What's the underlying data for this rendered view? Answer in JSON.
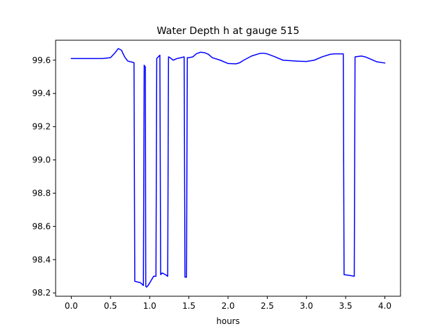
{
  "chart_data": {
    "type": "line",
    "title": "Water Depth h at gauge 515",
    "xlabel": "hours",
    "ylabel": "",
    "xlim": [
      -0.2,
      4.2
    ],
    "ylim": [
      98.18,
      99.72
    ],
    "xticks": [
      0.0,
      0.5,
      1.0,
      1.5,
      2.0,
      2.5,
      3.0,
      3.5,
      4.0
    ],
    "xtick_labels": [
      "0.0",
      "0.5",
      "1.0",
      "1.5",
      "2.0",
      "2.5",
      "3.0",
      "3.5",
      "4.0"
    ],
    "yticks": [
      98.2,
      98.4,
      98.6,
      98.8,
      99.0,
      99.2,
      99.4,
      99.6
    ],
    "ytick_labels": [
      "98.2",
      "98.4",
      "98.6",
      "98.8",
      "99.0",
      "99.2",
      "99.4",
      "99.6"
    ],
    "grid": false,
    "series": [
      {
        "color": "#0000ff",
        "x": [
          0.0,
          0.1,
          0.2,
          0.3,
          0.4,
          0.5,
          0.55,
          0.6,
          0.64,
          0.68,
          0.72,
          0.76,
          0.8,
          0.81,
          0.85,
          0.88,
          0.92,
          0.93,
          0.935,
          0.945,
          0.95,
          0.96,
          0.98,
          1.0,
          1.05,
          1.08,
          1.09,
          1.12,
          1.13,
          1.14,
          1.16,
          1.2,
          1.23,
          1.24,
          1.26,
          1.3,
          1.35,
          1.4,
          1.44,
          1.45,
          1.47,
          1.48,
          1.5,
          1.55,
          1.6,
          1.65,
          1.7,
          1.75,
          1.8,
          1.9,
          2.0,
          2.1,
          2.15,
          2.2,
          2.3,
          2.4,
          2.45,
          2.5,
          2.6,
          2.7,
          2.8,
          2.9,
          3.0,
          3.1,
          3.2,
          3.3,
          3.35,
          3.4,
          3.47,
          3.48,
          3.55,
          3.61,
          3.62,
          3.7,
          3.75,
          3.8,
          3.9,
          4.0
        ],
        "y": [
          99.61,
          99.61,
          99.61,
          99.61,
          99.61,
          99.615,
          99.64,
          99.67,
          99.66,
          99.62,
          99.595,
          99.59,
          99.585,
          98.27,
          98.265,
          98.262,
          98.245,
          99.57,
          99.565,
          99.56,
          98.24,
          98.235,
          98.245,
          98.26,
          98.3,
          98.3,
          99.61,
          99.625,
          99.63,
          98.31,
          98.32,
          98.31,
          98.3,
          99.62,
          99.615,
          99.6,
          99.61,
          99.615,
          99.62,
          98.295,
          98.295,
          99.615,
          99.615,
          99.62,
          99.64,
          99.648,
          99.645,
          99.635,
          99.615,
          99.6,
          99.58,
          99.578,
          99.585,
          99.6,
          99.625,
          99.64,
          99.642,
          99.638,
          99.62,
          99.6,
          99.597,
          99.594,
          99.592,
          99.6,
          99.62,
          99.635,
          99.638,
          99.638,
          99.638,
          98.31,
          98.305,
          98.3,
          99.62,
          99.625,
          99.62,
          99.61,
          99.59,
          99.583
        ]
      }
    ]
  }
}
